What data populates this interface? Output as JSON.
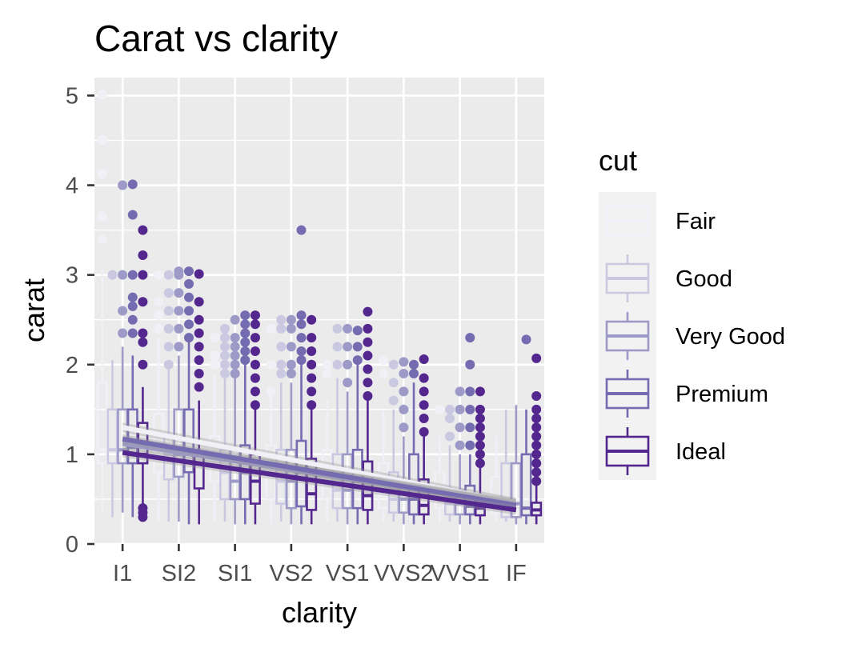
{
  "chart_data": {
    "type": "boxplot",
    "title": "Carat vs clarity",
    "xlabel": "clarity",
    "ylabel": "carat",
    "ylim": [
      0,
      5.2
    ],
    "yticks": [
      0,
      1,
      2,
      3,
      4,
      5
    ],
    "categories": [
      "I1",
      "SI2",
      "SI1",
      "VS2",
      "VS1",
      "VVS2",
      "VVS1",
      "IF"
    ],
    "grid": true,
    "legend": {
      "title": "cut",
      "position": "right"
    },
    "series": [
      {
        "name": "Fair",
        "color": "#f2f0f7",
        "boxes": [
          {
            "whisker_low": 0.34,
            "q1": 0.9,
            "median": 1.05,
            "q3": 1.8,
            "whisker_high": 3.05,
            "outliers": [
              3.4,
              3.65,
              4.13,
              4.5,
              5.01
            ]
          },
          {
            "whisker_low": 0.25,
            "q1": 0.8,
            "median": 1.0,
            "q3": 1.45,
            "whisker_high": 2.3,
            "outliers": [
              2.4,
              2.55,
              2.7,
              3.0
            ]
          },
          {
            "whisker_low": 0.25,
            "q1": 0.7,
            "median": 1.0,
            "q3": 1.2,
            "whisker_high": 1.9,
            "outliers": [
              2.0,
              2.1,
              2.3
            ]
          },
          {
            "whisker_low": 0.22,
            "q1": 0.5,
            "median": 0.8,
            "q3": 1.1,
            "whisker_high": 1.7,
            "outliers": [
              1.7,
              2.0,
              2.4
            ]
          },
          {
            "whisker_low": 0.25,
            "q1": 0.5,
            "median": 0.8,
            "q3": 1.05,
            "whisker_high": 1.6,
            "outliers": [
              1.9,
              2.0
            ]
          },
          {
            "whisker_low": 0.25,
            "q1": 0.4,
            "median": 0.55,
            "q3": 0.9,
            "whisker_high": 1.5,
            "outliers": [
              1.9,
              2.05
            ]
          },
          {
            "whisker_low": 0.25,
            "q1": 0.4,
            "median": 0.55,
            "q3": 0.8,
            "whisker_high": 1.2,
            "outliers": [
              1.5
            ]
          },
          {
            "whisker_low": 0.25,
            "q1": 0.35,
            "median": 0.45,
            "q3": 0.75,
            "whisker_high": 1.2,
            "outliers": []
          }
        ]
      },
      {
        "name": "Good",
        "color": "#cbc9e2",
        "boxes": [
          {
            "whisker_low": 0.3,
            "q1": 0.9,
            "median": 1.05,
            "q3": 1.5,
            "whisker_high": 2.05,
            "outliers": [
              3.0
            ]
          },
          {
            "whisker_low": 0.25,
            "q1": 0.72,
            "median": 1.0,
            "q3": 1.2,
            "whisker_high": 1.95,
            "outliers": [
              2.0,
              2.2,
              2.4,
              2.6,
              2.8,
              3.0
            ]
          },
          {
            "whisker_low": 0.25,
            "q1": 0.5,
            "median": 0.8,
            "q3": 1.05,
            "whisker_high": 1.85,
            "outliers": [
              1.9,
              2.0,
              2.1,
              2.2,
              2.3,
              2.4
            ]
          },
          {
            "whisker_low": 0.25,
            "q1": 0.45,
            "median": 0.7,
            "q3": 1.05,
            "whisker_high": 1.8,
            "outliers": [
              1.9,
              2.0,
              2.2,
              2.4,
              2.5
            ]
          },
          {
            "whisker_low": 0.25,
            "q1": 0.4,
            "median": 0.6,
            "q3": 1.0,
            "whisker_high": 1.85,
            "outliers": [
              2.0,
              2.2,
              2.4
            ]
          },
          {
            "whisker_low": 0.25,
            "q1": 0.35,
            "median": 0.5,
            "q3": 0.8,
            "whisker_high": 1.5,
            "outliers": [
              1.6,
              1.8,
              2.0
            ]
          },
          {
            "whisker_low": 0.25,
            "q1": 0.33,
            "median": 0.45,
            "q3": 0.6,
            "whisker_high": 1.1,
            "outliers": [
              1.2,
              1.4,
              1.5
            ]
          },
          {
            "whisker_low": 0.25,
            "q1": 0.3,
            "median": 0.45,
            "q3": 0.9,
            "whisker_high": 1.5,
            "outliers": []
          }
        ]
      },
      {
        "name": "Very Good",
        "color": "#9e9ac8",
        "boxes": [
          {
            "whisker_low": 0.35,
            "q1": 0.9,
            "median": 1.05,
            "q3": 1.5,
            "whisker_high": 2.2,
            "outliers": [
              2.35,
              2.6,
              3.0,
              4.0
            ]
          },
          {
            "whisker_low": 0.25,
            "q1": 0.75,
            "median": 1.0,
            "q3": 1.5,
            "whisker_high": 2.1,
            "outliers": [
              2.2,
              2.4,
              2.6,
              2.8,
              3.0,
              3.04
            ]
          },
          {
            "whisker_low": 0.22,
            "q1": 0.5,
            "median": 0.7,
            "q3": 1.05,
            "whisker_high": 1.85,
            "outliers": [
              1.9,
              2.0,
              2.1,
              2.2,
              2.3,
              2.5
            ]
          },
          {
            "whisker_low": 0.22,
            "q1": 0.4,
            "median": 0.7,
            "q3": 1.05,
            "whisker_high": 1.8,
            "outliers": [
              1.9,
              2.0,
              2.2,
              2.4,
              2.5
            ]
          },
          {
            "whisker_low": 0.22,
            "q1": 0.4,
            "median": 0.6,
            "q3": 1.0,
            "whisker_high": 1.7,
            "outliers": [
              1.8,
              2.0,
              2.2,
              2.4
            ]
          },
          {
            "whisker_low": 0.22,
            "q1": 0.35,
            "median": 0.5,
            "q3": 0.7,
            "whisker_high": 1.2,
            "outliers": [
              1.3,
              1.5,
              1.7,
              1.9,
              2.03
            ]
          },
          {
            "whisker_low": 0.22,
            "q1": 0.33,
            "median": 0.45,
            "q3": 0.6,
            "whisker_high": 1.0,
            "outliers": [
              1.1,
              1.3,
              1.5,
              1.7
            ]
          },
          {
            "whisker_low": 0.22,
            "q1": 0.3,
            "median": 0.45,
            "q3": 0.9,
            "whisker_high": 1.55,
            "outliers": []
          }
        ]
      },
      {
        "name": "Premium",
        "color": "#756bb1",
        "boxes": [
          {
            "whisker_low": 0.3,
            "q1": 0.9,
            "median": 1.08,
            "q3": 1.5,
            "whisker_high": 2.1,
            "outliers": [
              2.35,
              2.5,
              2.65,
              2.75,
              3.0,
              3.67,
              4.01
            ]
          },
          {
            "whisker_low": 0.22,
            "q1": 0.8,
            "median": 1.01,
            "q3": 1.5,
            "whisker_high": 2.25,
            "outliers": [
              2.3,
              2.45,
              2.6,
              2.75,
              2.9,
              3.04
            ]
          },
          {
            "whisker_low": 0.22,
            "q1": 0.5,
            "median": 0.8,
            "q3": 1.1,
            "whisker_high": 2.0,
            "outliers": [
              2.05,
              2.15,
              2.25,
              2.35,
              2.45,
              2.55
            ]
          },
          {
            "whisker_low": 0.22,
            "q1": 0.42,
            "median": 0.8,
            "q3": 1.15,
            "whisker_high": 2.0,
            "outliers": [
              2.05,
              2.15,
              2.3,
              2.45,
              2.55,
              3.5
            ]
          },
          {
            "whisker_low": 0.22,
            "q1": 0.4,
            "median": 0.7,
            "q3": 1.05,
            "whisker_high": 2.0,
            "outliers": [
              2.05,
              2.2,
              2.38
            ]
          },
          {
            "whisker_low": 0.22,
            "q1": 0.33,
            "median": 0.5,
            "q3": 1.0,
            "whisker_high": 1.8,
            "outliers": [
              1.9,
              2.0
            ]
          },
          {
            "whisker_low": 0.22,
            "q1": 0.33,
            "median": 0.42,
            "q3": 0.65,
            "whisker_high": 1.0,
            "outliers": [
              1.1,
              1.3,
              1.5,
              1.7,
              2.0,
              2.3
            ]
          },
          {
            "whisker_low": 0.22,
            "q1": 0.32,
            "median": 0.4,
            "q3": 1.0,
            "whisker_high": 1.5,
            "outliers": [
              2.28
            ]
          }
        ]
      },
      {
        "name": "Ideal",
        "color": "#54278f",
        "boxes": [
          {
            "whisker_low": 0.3,
            "q1": 0.9,
            "median": 1.0,
            "q3": 1.35,
            "whisker_high": 1.75,
            "outliers": [
              0.3,
              0.35,
              0.4,
              2.0,
              2.25,
              2.35,
              2.7,
              3.0,
              3.22,
              3.5
            ]
          },
          {
            "whisker_low": 0.22,
            "q1": 0.62,
            "median": 0.9,
            "q3": 1.02,
            "whisker_high": 1.6,
            "outliers": [
              1.75,
              1.9,
              2.05,
              2.2,
              2.35,
              2.5,
              2.7,
              3.01
            ]
          },
          {
            "whisker_low": 0.22,
            "q1": 0.45,
            "median": 0.7,
            "q3": 1.0,
            "whisker_high": 1.5,
            "outliers": [
              1.55,
              1.7,
              1.85,
              2.0,
              2.15,
              2.3,
              2.45,
              2.55
            ]
          },
          {
            "whisker_low": 0.22,
            "q1": 0.38,
            "median": 0.56,
            "q3": 0.95,
            "whisker_high": 1.5,
            "outliers": [
              1.55,
              1.7,
              1.85,
              2.0,
              2.15,
              2.3,
              2.5
            ]
          },
          {
            "whisker_low": 0.22,
            "q1": 0.38,
            "median": 0.54,
            "q3": 0.92,
            "whisker_high": 1.6,
            "outliers": [
              1.65,
              1.8,
              1.95,
              2.1,
              2.25,
              2.4,
              2.59
            ]
          },
          {
            "whisker_low": 0.22,
            "q1": 0.33,
            "median": 0.43,
            "q3": 0.72,
            "whisker_high": 1.2,
            "outliers": [
              1.25,
              1.4,
              1.55,
              1.7,
              1.85,
              2.06
            ]
          },
          {
            "whisker_low": 0.22,
            "q1": 0.32,
            "median": 0.4,
            "q3": 0.52,
            "whisker_high": 0.85,
            "outliers": [
              0.9,
              1.0,
              1.1,
              1.2,
              1.3,
              1.4,
              1.5,
              1.7
            ]
          },
          {
            "whisker_low": 0.22,
            "q1": 0.32,
            "median": 0.38,
            "q3": 0.46,
            "whisker_high": 0.65,
            "outliers": [
              0.7,
              0.8,
              0.9,
              1.0,
              1.1,
              1.2,
              1.3,
              1.4,
              1.5,
              1.65,
              2.07
            ]
          }
        ]
      }
    ],
    "trend_lines": [
      {
        "name": "Fair",
        "start": 1.3,
        "end": 0.46
      },
      {
        "name": "Good",
        "start": 1.15,
        "end": 0.45
      },
      {
        "name": "Very Good",
        "start": 1.12,
        "end": 0.44
      },
      {
        "name": "Premium",
        "start": 1.17,
        "end": 0.43
      },
      {
        "name": "Ideal",
        "start": 1.02,
        "end": 0.38
      }
    ]
  },
  "colors": {
    "panel_background": "#ebebeb",
    "grid": "#ffffff",
    "legend_key_background": "#f2f2f2"
  }
}
